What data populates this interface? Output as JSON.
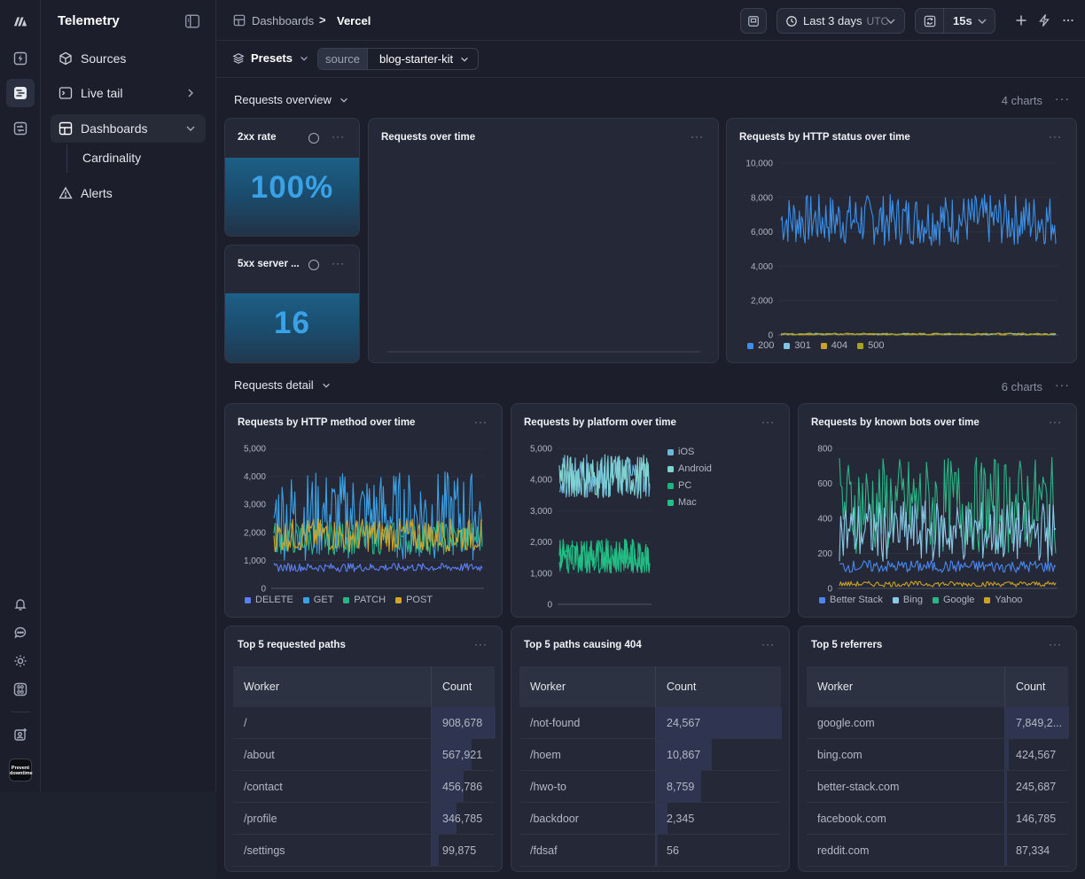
{
  "app": {
    "title": "Telemetry"
  },
  "sidebar": {
    "items": [
      {
        "label": "Sources",
        "icon": "cube-icon"
      },
      {
        "label": "Live tail",
        "icon": "terminal-icon"
      },
      {
        "label": "Dashboards",
        "icon": "dashboard-icon"
      },
      {
        "label": "Cardinality"
      },
      {
        "label": "Alerts",
        "icon": "warning-icon"
      }
    ]
  },
  "org": {
    "avatar_text": "Prevent downtime"
  },
  "header": {
    "breadcrumb_root": "Dashboards",
    "breadcrumb_sep": ">",
    "breadcrumb_current": "Vercel",
    "time_range": "Last 3 days",
    "timezone": "UTC",
    "refresh_interval": "15s"
  },
  "filters": {
    "presets_label": "Presets",
    "chip_key": "source",
    "chip_value": "blog-starter-kit"
  },
  "sections": [
    {
      "title": "Requests overview",
      "count": "4 charts"
    },
    {
      "title": "Requests detail",
      "count": "6 charts"
    }
  ],
  "stats": [
    {
      "title": "2xx rate",
      "value": "100%"
    },
    {
      "title": "5xx server ...",
      "value": "16"
    }
  ],
  "charts": {
    "requests_over_time": {
      "title": "Requests over time"
    },
    "http_status": {
      "title": "Requests by HTTP status over time",
      "chart_data": {
        "type": "line",
        "ylim": [
          0,
          10000
        ],
        "yticks": [
          "10,000",
          "8,000",
          "6,000",
          "4,000",
          "2,000",
          "0"
        ],
        "series": [
          {
            "name": "200",
            "approx_range": [
              5200,
              8200
            ],
            "color": "#3b8fe8"
          },
          {
            "name": "301",
            "approx_range": [
              0,
              100
            ],
            "color": "#7fc4e6"
          },
          {
            "name": "404",
            "approx_range": [
              0,
              100
            ],
            "color": "#c9a227"
          },
          {
            "name": "500",
            "approx_range": [
              0,
              100
            ],
            "color": "#a8a21e"
          }
        ]
      }
    },
    "http_method": {
      "title": "Requests by HTTP method over time",
      "chart_data": {
        "type": "line",
        "ylim": [
          0,
          5000
        ],
        "yticks": [
          "5,000",
          "4,000",
          "3,000",
          "2,000",
          "1,000",
          "0"
        ],
        "series": [
          {
            "name": "DELETE",
            "approx_range": [
              600,
              900
            ],
            "color": "#5b7ff0"
          },
          {
            "name": "GET",
            "approx_range": [
              1000,
              4200
            ],
            "color": "#3ba1e6"
          },
          {
            "name": "PATCH",
            "approx_range": [
              1200,
              2400
            ],
            "color": "#2bb585"
          },
          {
            "name": "POST",
            "approx_range": [
              1300,
              2500
            ],
            "color": "#d4a628"
          }
        ]
      }
    },
    "platform": {
      "title": "Requests by platform over time",
      "chart_data": {
        "type": "line",
        "ylim": [
          0,
          5000
        ],
        "yticks": [
          "5,000",
          "4,000",
          "3,000",
          "2,000",
          "1,000",
          "0"
        ],
        "series": [
          {
            "name": "iOS",
            "approx_range": [
              3400,
              4800
            ],
            "color": "#6fb6d9"
          },
          {
            "name": "Android",
            "approx_range": [
              3400,
              4800
            ],
            "color": "#7fd3d0"
          },
          {
            "name": "PC",
            "approx_range": [
              1000,
              2100
            ],
            "color": "#1fb37c"
          },
          {
            "name": "Mac",
            "approx_range": [
              1000,
              2100
            ],
            "color": "#22c087"
          }
        ]
      }
    },
    "bots": {
      "title": "Requests by known bots over time",
      "chart_data": {
        "type": "line",
        "ylim": [
          0,
          800
        ],
        "yticks": [
          "800",
          "600",
          "400",
          "200",
          "0"
        ],
        "series": [
          {
            "name": "Better Stack",
            "approx_range": [
              90,
              160
            ],
            "color": "#4a86ee"
          },
          {
            "name": "Bing",
            "approx_range": [
              150,
              500
            ],
            "color": "#89c8e6"
          },
          {
            "name": "Google",
            "approx_range": [
              200,
              750
            ],
            "color": "#2bb585"
          },
          {
            "name": "Yahoo",
            "approx_range": [
              10,
              40
            ],
            "color": "#c9a227"
          }
        ]
      }
    }
  },
  "tables": [
    {
      "title": "Top 5 requested paths",
      "col1": "Worker",
      "col2": "Count",
      "rows": [
        {
          "name": "/",
          "count": "908,678",
          "frac": 1.0
        },
        {
          "name": "/about",
          "count": "567,921",
          "frac": 0.625
        },
        {
          "name": "/contact",
          "count": "456,786",
          "frac": 0.503
        },
        {
          "name": "/profile",
          "count": "346,785",
          "frac": 0.382
        },
        {
          "name": "/settings",
          "count": "99,875",
          "frac": 0.11
        }
      ]
    },
    {
      "title": "Top 5 paths causing 404",
      "col1": "Worker",
      "col2": "Count",
      "rows": [
        {
          "name": "/not-found",
          "count": "24,567",
          "frac": 1.0
        },
        {
          "name": "/hoem",
          "count": "10,867",
          "frac": 0.442
        },
        {
          "name": "/hwo-to",
          "count": "8,759",
          "frac": 0.357
        },
        {
          "name": "/backdoor",
          "count": "2,345",
          "frac": 0.095
        },
        {
          "name": "/fdsaf",
          "count": "56",
          "frac": 0.002
        }
      ]
    },
    {
      "title": "Top 5 referrers",
      "col1": "Worker",
      "col2": "Count",
      "rows": [
        {
          "name": "google.com",
          "count": "7,849,2...",
          "frac": 1.0
        },
        {
          "name": "bing.com",
          "count": "424,567",
          "frac": 0.054
        },
        {
          "name": "better-stack.com",
          "count": "245,687",
          "frac": 0.031
        },
        {
          "name": "facebook.com",
          "count": "146,785",
          "frac": 0.019
        },
        {
          "name": "reddit.com",
          "count": "87,334",
          "frac": 0.011
        }
      ]
    }
  ]
}
